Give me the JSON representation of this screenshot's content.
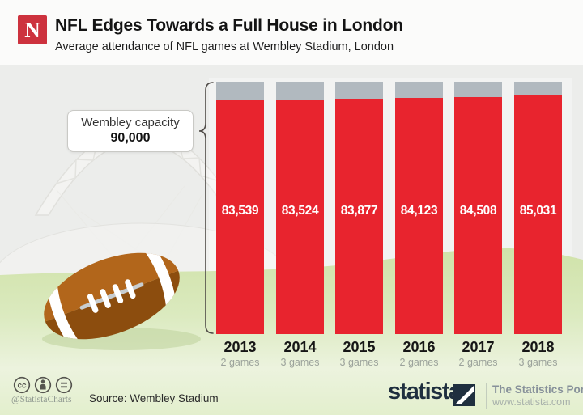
{
  "header": {
    "logo_letter": "N",
    "title": "NFL Edges Towards a Full House in London",
    "subtitle": "Average attendance of NFL games at Wembley Stadium, London"
  },
  "callout": {
    "label": "Wembley capacity",
    "value": "90,000"
  },
  "chart_data": {
    "type": "bar",
    "title": "NFL Edges Towards a Full House in London",
    "subtitle": "Average attendance of NFL games at Wembley Stadium, London",
    "categories": [
      "2013",
      "2014",
      "2015",
      "2016",
      "2017",
      "2018"
    ],
    "games": [
      "2 games",
      "3 games",
      "3 games",
      "2 games",
      "2 games",
      "3 games"
    ],
    "values": [
      83539,
      83524,
      83877,
      84123,
      84508,
      85031
    ],
    "value_labels": [
      "83,539",
      "83,524",
      "83,877",
      "84,123",
      "84,508",
      "85,031"
    ],
    "capacity": 90000,
    "capacity_label": "Wembley capacity 90,000",
    "ylabel": "Average attendance",
    "ylim": [
      0,
      90000
    ],
    "grid": false,
    "legend": "none",
    "bar_color": "#e8242e",
    "remainder_color": "#b1b9bf"
  },
  "footer": {
    "license_icons": [
      "cc-icon",
      "attribution-icon",
      "equals-icon"
    ],
    "license_handle": "@StatistaCharts",
    "source": "Source: Wembley Stadium",
    "brand": "statista",
    "portal": "The Statistics Portal",
    "website": "www.statista.com"
  },
  "colors": {
    "bar_red": "#e8242e",
    "cap_gray": "#b1b9bf",
    "grass_green": "#d5e5b3",
    "sky_gray": "#ecedeb",
    "brand_navy": "#1f2f3f",
    "logo_red": "#cd323e"
  }
}
